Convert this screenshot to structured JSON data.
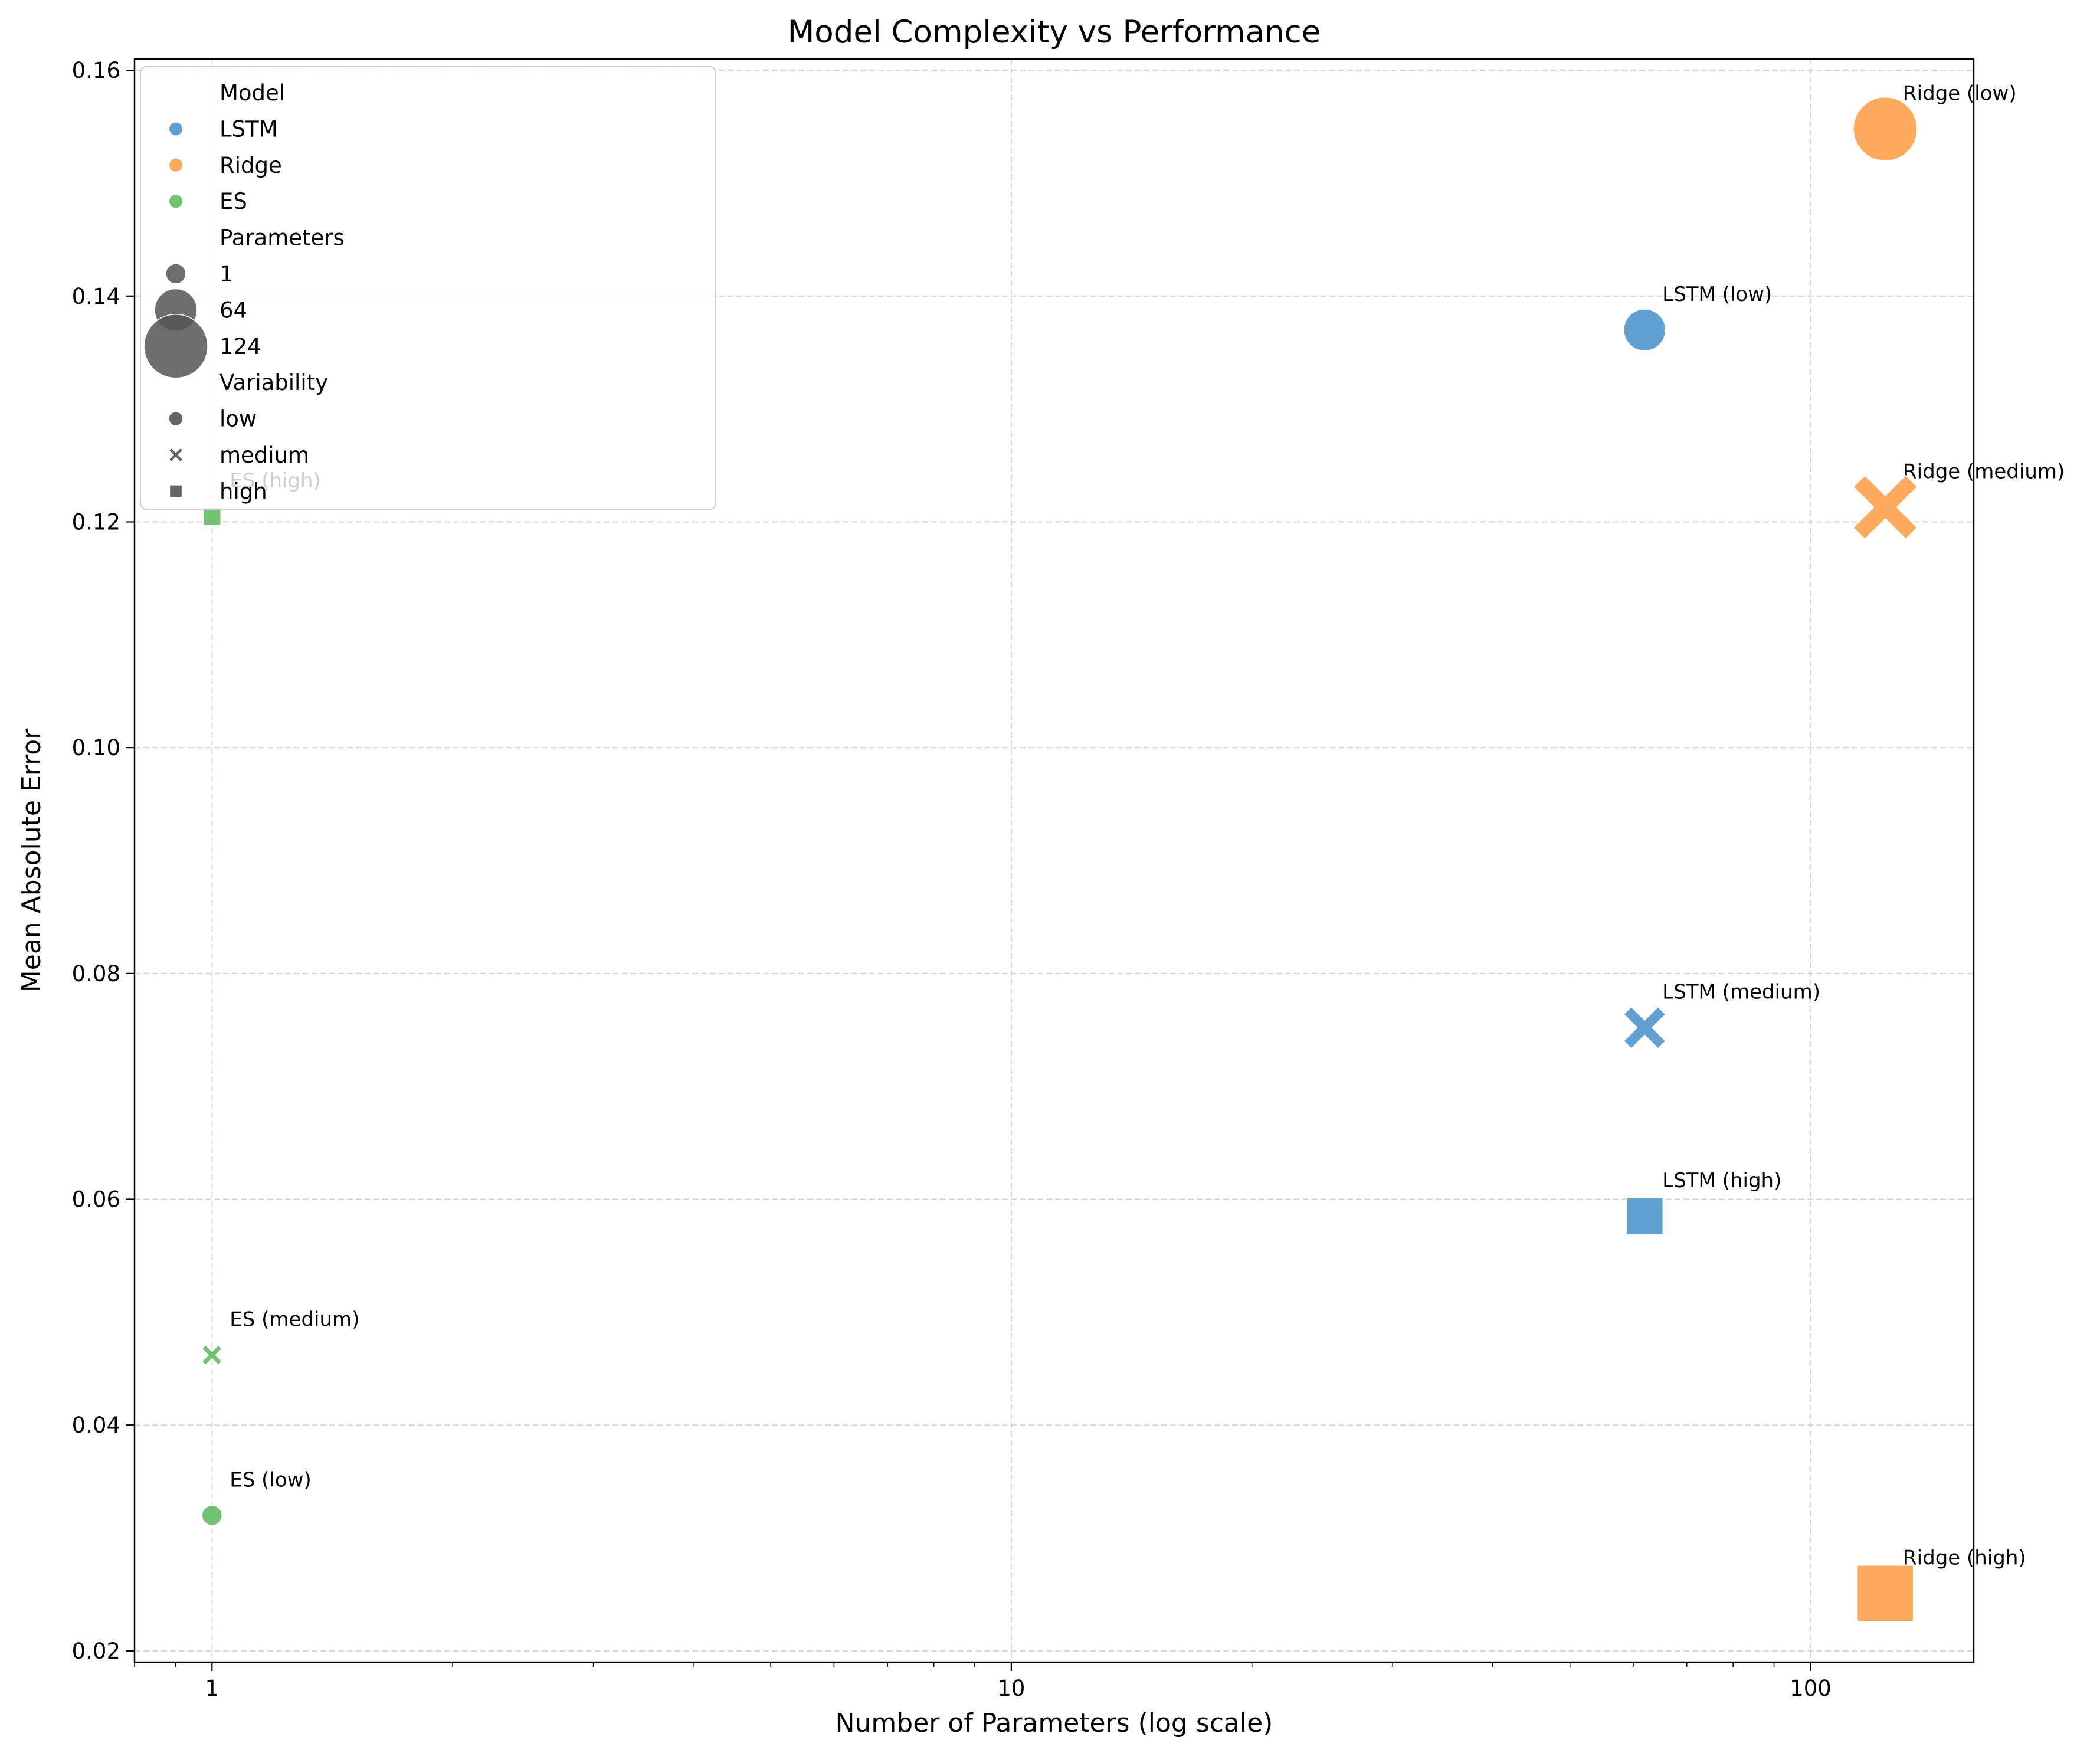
{
  "chart_data": {
    "type": "scatter",
    "title": "Model Complexity vs Performance",
    "xlabel": "Number of Parameters (log scale)",
    "ylabel": "Mean Absolute Error",
    "xscale": "log",
    "xlim": [
      0.8,
      160
    ],
    "ylim": [
      0.019,
      0.161
    ],
    "x_ticks": [
      {
        "value": 1,
        "label": "1"
      },
      {
        "value": 10,
        "label": "10"
      },
      {
        "value": 100,
        "label": "100"
      }
    ],
    "y_ticks": [
      {
        "value": 0.02,
        "label": "0.02"
      },
      {
        "value": 0.04,
        "label": "0.04"
      },
      {
        "value": 0.06,
        "label": "0.06"
      },
      {
        "value": 0.08,
        "label": "0.08"
      },
      {
        "value": 0.1,
        "label": "0.10"
      },
      {
        "value": 0.12,
        "label": "0.12"
      },
      {
        "value": 0.14,
        "label": "0.14"
      },
      {
        "value": 0.16,
        "label": "0.16"
      }
    ],
    "grid": true,
    "legend_position": "top-left",
    "colors": {
      "LSTM": "#5b9bd0",
      "Ridge": "#ffa453",
      "ES": "#6abf69"
    },
    "legend": {
      "hue_title": "Model",
      "hue_items": [
        "LSTM",
        "Ridge",
        "ES"
      ],
      "size_title": "Parameters",
      "size_items": [
        {
          "label": "1",
          "value": 1
        },
        {
          "label": "64",
          "value": 64
        },
        {
          "label": "124",
          "value": 124
        }
      ],
      "style_title": "Variability",
      "style_items": [
        {
          "label": "low",
          "marker": "circle"
        },
        {
          "label": "medium",
          "marker": "x"
        },
        {
          "label": "high",
          "marker": "square"
        }
      ]
    },
    "points": [
      {
        "model": "LSTM",
        "variability": "low",
        "x": 62,
        "y": 0.137,
        "size": 62,
        "label": "LSTM (low)"
      },
      {
        "model": "LSTM",
        "variability": "medium",
        "x": 62,
        "y": 0.0752,
        "size": 62,
        "label": "LSTM (medium)"
      },
      {
        "model": "LSTM",
        "variability": "high",
        "x": 62,
        "y": 0.0585,
        "size": 62,
        "label": "LSTM (high)"
      },
      {
        "model": "Ridge",
        "variability": "low",
        "x": 124,
        "y": 0.1548,
        "size": 124,
        "label": "Ridge (low)"
      },
      {
        "model": "Ridge",
        "variability": "medium",
        "x": 124,
        "y": 0.1213,
        "size": 124,
        "label": "Ridge (medium)"
      },
      {
        "model": "Ridge",
        "variability": "high",
        "x": 124,
        "y": 0.0251,
        "size": 124,
        "label": "Ridge (high)"
      },
      {
        "model": "ES",
        "variability": "low",
        "x": 1,
        "y": 0.032,
        "size": 1,
        "label": "ES (low)"
      },
      {
        "model": "ES",
        "variability": "medium",
        "x": 1,
        "y": 0.0462,
        "size": 1,
        "label": "ES (medium)"
      },
      {
        "model": "ES",
        "variability": "high",
        "x": 1,
        "y": 0.1205,
        "size": 1,
        "label": "ES (high)"
      }
    ]
  }
}
